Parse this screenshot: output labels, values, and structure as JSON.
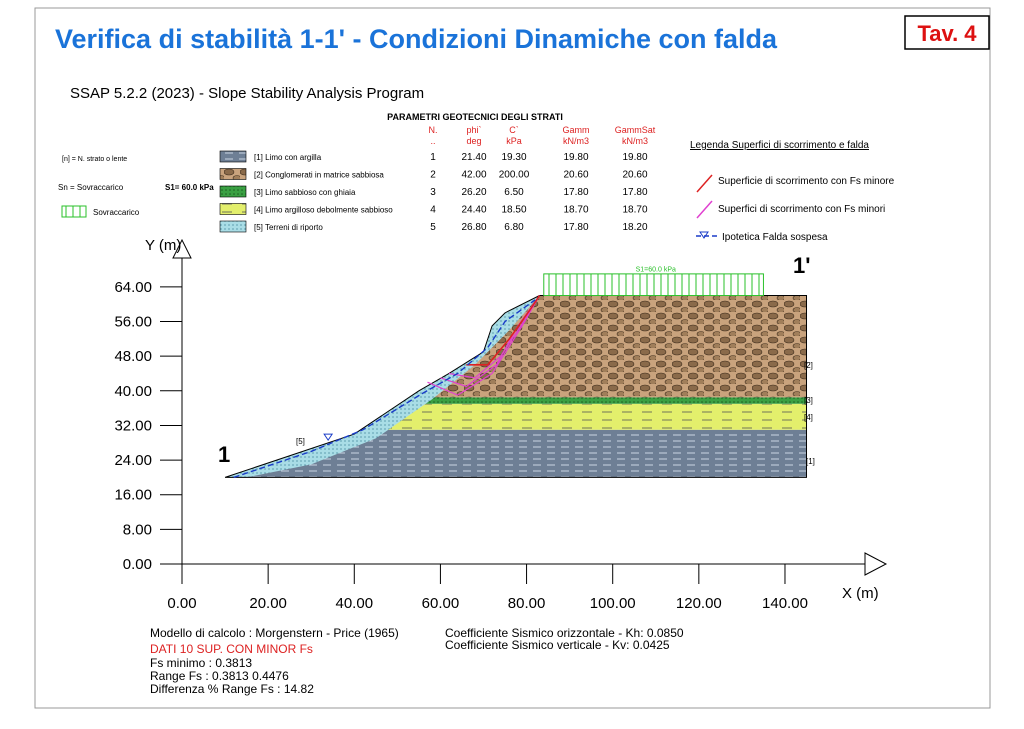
{
  "header": {
    "title": "Verifica di stabilità 1-1' - Condizioni Dinamiche con falda",
    "sheet": "Tav. 4",
    "program": "SSAP 5.2.2 (2023) - Slope Stability Analysis Program"
  },
  "legend_left": {
    "strata_note": "[n] = N. strato o lente",
    "surcharge_note": "Sn = Sovraccarico",
    "surcharge_value": "S1= 60.0 kPa",
    "surcharge_label": "Sovraccarico"
  },
  "table": {
    "title": "PARAMETRI GEOTECNICI DEGLI STRATI",
    "headers": [
      [
        "N.",
        ".."
      ],
      [
        "phi`",
        "deg"
      ],
      [
        "C`",
        "kPa"
      ],
      [
        "Gamm",
        "kN/m3"
      ],
      [
        "GammSat",
        "kN/m3"
      ]
    ],
    "rows": [
      [
        "[1] Limo con argilla",
        "1",
        "21.40",
        "19.30",
        "19.80",
        "19.80"
      ],
      [
        "[2] Conglomerati in matrice sabbiosa",
        "2",
        "42.00",
        "200.00",
        "20.60",
        "20.60"
      ],
      [
        "[3] Limo sabbioso con ghiaia",
        "3",
        "26.20",
        "6.50",
        "17.80",
        "17.80"
      ],
      [
        "[4] Limo argilloso debolmente sabbioso",
        "4",
        "24.40",
        "18.50",
        "18.70",
        "18.70"
      ],
      [
        "[5] Terreni di riporto",
        "5",
        "26.80",
        "6.80",
        "17.80",
        "18.20"
      ]
    ]
  },
  "legend_right": {
    "title": "Legenda Superfici di scorrimento e falda",
    "items": [
      "Superficie di scorrimento con Fs minore",
      "Superfici di scorrimento con Fs minori",
      "Ipotetica Falda sospesa"
    ]
  },
  "plot": {
    "y_title": "Y (m)",
    "x_title": "X (m)",
    "yticks": [
      "0.00",
      "8.00",
      "16.00",
      "24.00",
      "32.00",
      "40.00",
      "48.00",
      "56.00",
      "64.00"
    ],
    "xticks": [
      "0.00",
      "20.00",
      "40.00",
      "60.00",
      "80.00",
      "100.00",
      "120.00",
      "140.00"
    ],
    "section_start": "1",
    "section_end": "1'",
    "surcharge_tag": "S1=60.0 kPa",
    "layer_tags": [
      "[5]",
      "[2]",
      "[3]",
      "[4]",
      "[1]"
    ]
  },
  "footer": {
    "model": "Modello di calcolo : Morgenstern - Price (1965)",
    "kh": "Coefficiente Sismico orizzontale   - Kh:  0.0850",
    "kv": "Coefficiente Sismico verticale      - Kv:  0.0425",
    "dati": "DATI 10 SUP. CON MINOR Fs",
    "fs_min": "Fs minimo : 0.3813",
    "range": "Range Fs :  0.3813   0.4476",
    "diff": "Differenza % Range Fs : 14.82"
  }
}
